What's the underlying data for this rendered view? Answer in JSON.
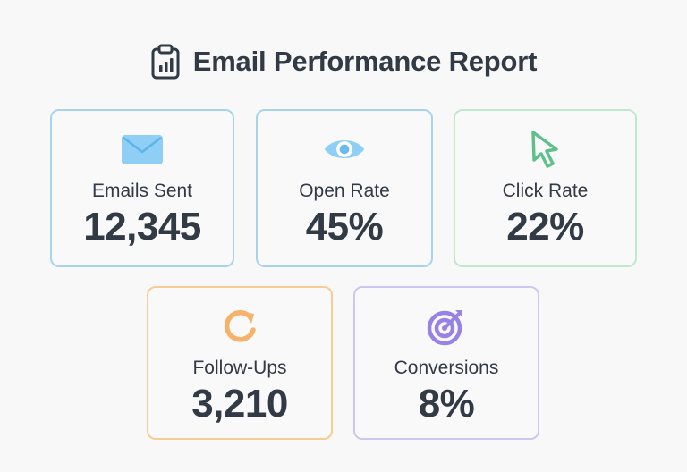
{
  "title": "Email Performance Report",
  "metrics": [
    {
      "label": "Emails Sent",
      "value": "12,345",
      "icon": "envelope-icon",
      "accent": "#79c2f0"
    },
    {
      "label": "Open Rate",
      "value": "45%",
      "icon": "eye-icon",
      "accent": "#79c2f0"
    },
    {
      "label": "Click Rate",
      "value": "22%",
      "icon": "cursor-icon",
      "accent": "#6cc894"
    },
    {
      "label": "Follow-Ups",
      "value": "3,210",
      "icon": "refresh-icon",
      "accent": "#f5b56f"
    },
    {
      "label": "Conversions",
      "value": "8%",
      "icon": "target-icon",
      "accent": "#9b89e6"
    }
  ],
  "header_icon": "clipboard-chart-icon"
}
